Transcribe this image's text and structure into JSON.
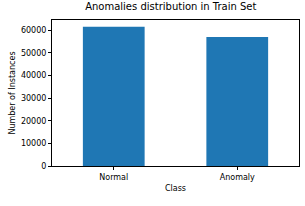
{
  "chart_data": {
    "type": "bar",
    "title": "Anomalies distribution in Train Set",
    "x_label": "Class",
    "y_label": "Number of Instances",
    "categories": [
      "Normal",
      "Anomaly"
    ],
    "values": [
      61500,
      57000
    ],
    "color": "#1f77b4",
    "ylim": [
      0,
      64500
    ],
    "yticks": [
      0,
      10000,
      20000,
      30000,
      40000,
      50000,
      60000
    ],
    "grid": false
  }
}
